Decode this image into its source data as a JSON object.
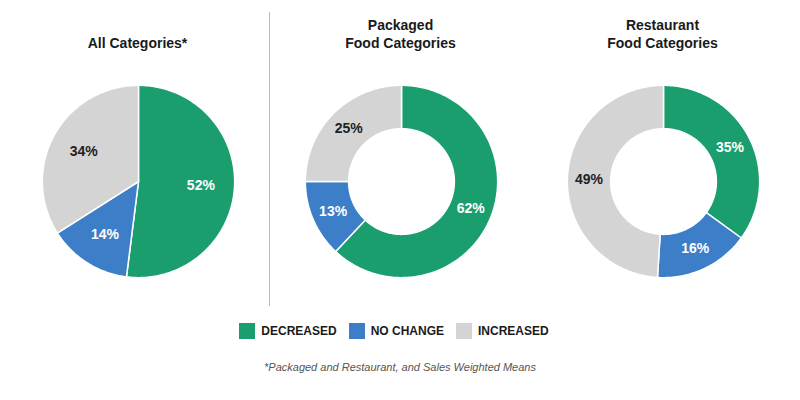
{
  "chart_data": [
    {
      "type": "pie",
      "title": "All Categories*",
      "categories": [
        "DECREASED",
        "NO CHANGE",
        "INCREASED"
      ],
      "values": [
        52,
        14,
        34
      ],
      "value_labels": [
        "52%",
        "14%",
        "34%"
      ],
      "colors": [
        "#1a9e6e",
        "#3d7ec8",
        "#d4d4d4"
      ],
      "data_labels": true
    },
    {
      "type": "donut",
      "title": "Packaged\nFood Categories",
      "categories": [
        "DECREASED",
        "NO CHANGE",
        "INCREASED"
      ],
      "values": [
        62,
        13,
        25
      ],
      "value_labels": [
        "62%",
        "13%",
        "25%"
      ],
      "colors": [
        "#1a9e6e",
        "#3d7ec8",
        "#d4d4d4"
      ],
      "data_labels": true
    },
    {
      "type": "donut",
      "title": "Restaurant\nFood Categories",
      "categories": [
        "DECREASED",
        "NO CHANGE",
        "INCREASED"
      ],
      "values": [
        35,
        16,
        49
      ],
      "value_labels": [
        "35%",
        "16%",
        "49%"
      ],
      "colors": [
        "#1a9e6e",
        "#3d7ec8",
        "#d4d4d4"
      ],
      "data_labels": true
    }
  ],
  "legend": "bottom",
  "annotations": [
    "*Packaged and Restaurant, and Sales Weighted Means"
  ]
}
